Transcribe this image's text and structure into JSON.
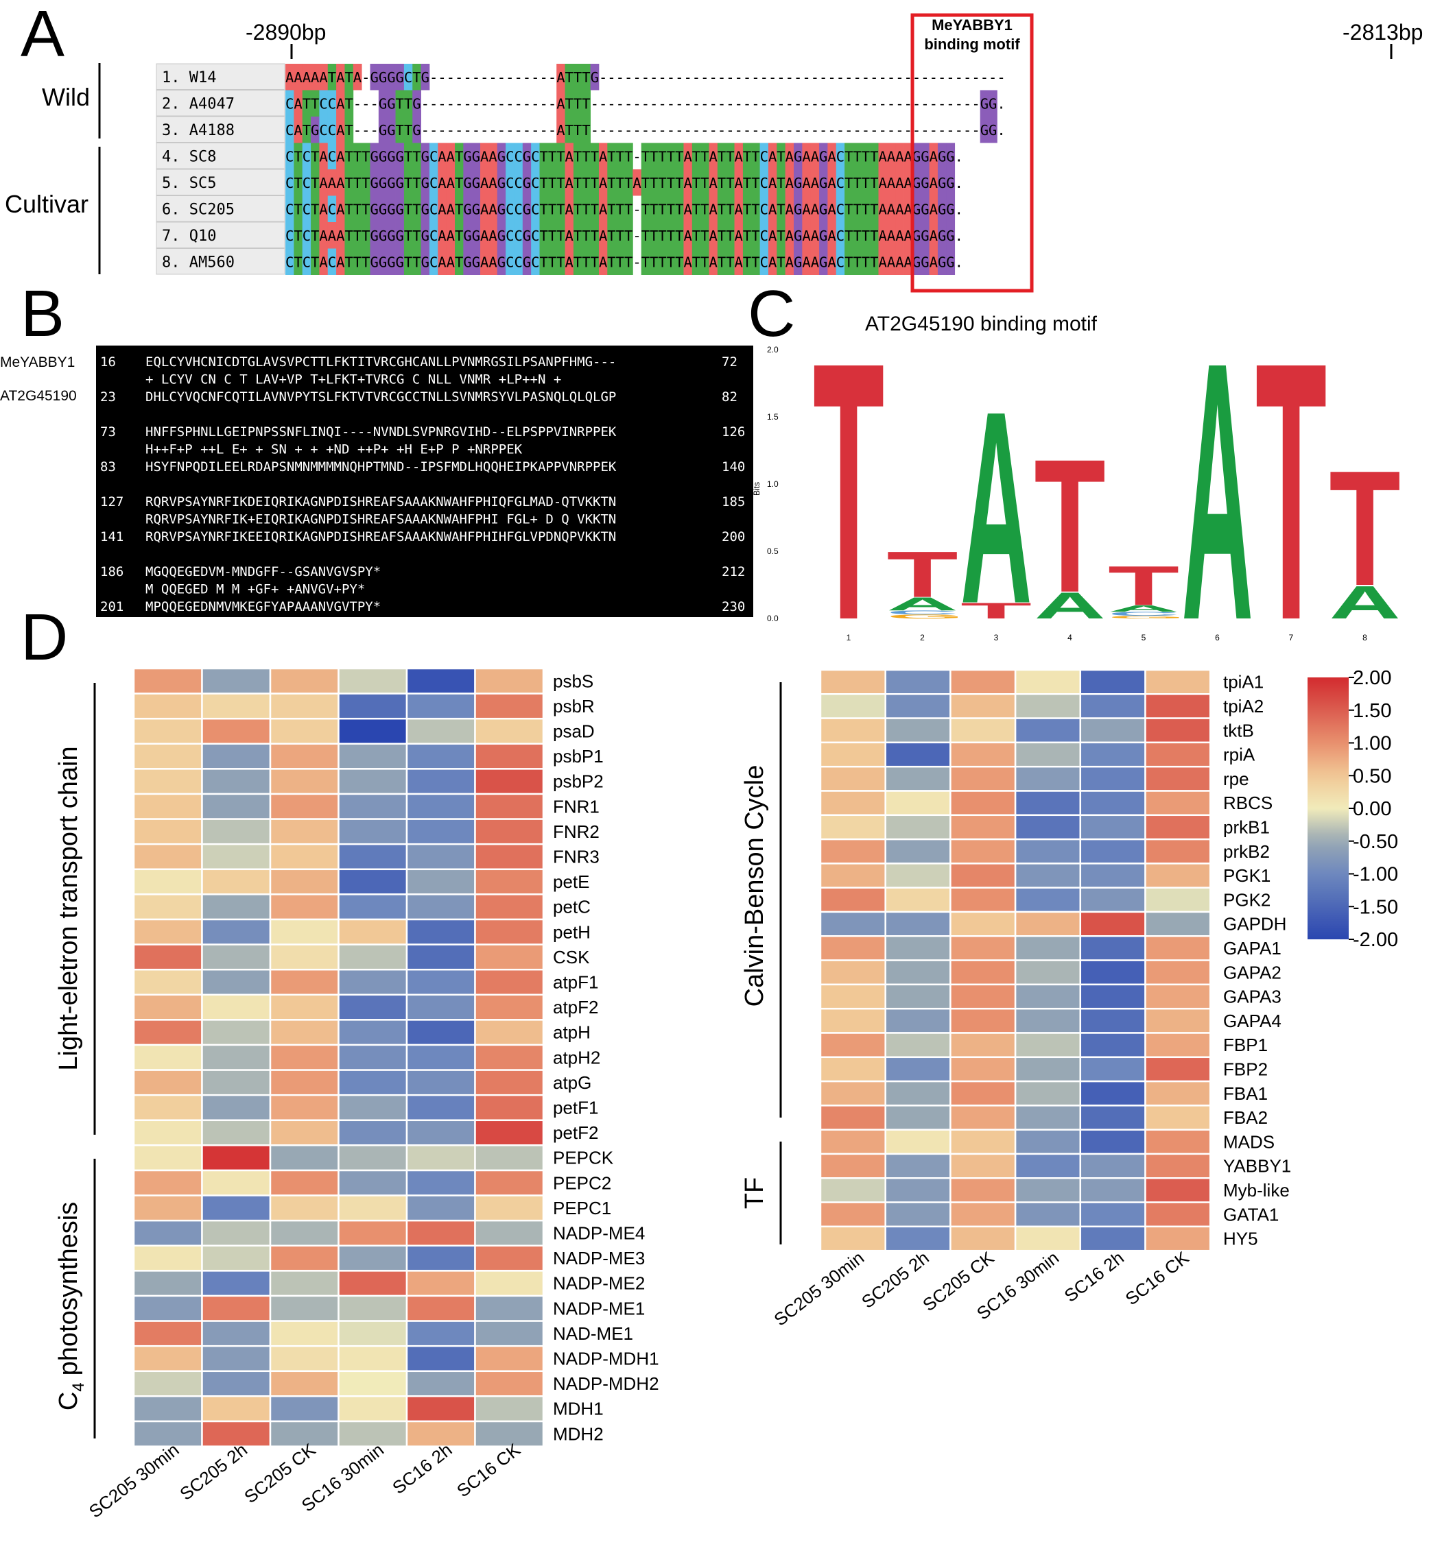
{
  "panels": {
    "a": "A",
    "b": "B",
    "c": "C",
    "d": "D"
  },
  "alignment": {
    "left_pos": "-2890bp",
    "right_pos": "-2813bp",
    "motif_label_line1": "MeYABBY1",
    "motif_label_line2": "binding motif",
    "group_wild": "Wild",
    "group_cultivar": "Cultivar",
    "rows": [
      {
        "label": "1. W14",
        "seq": "AAAAATATA-GGGGCTG---------------ATTTG------------------------------------------------"
      },
      {
        "label": "2. A4047",
        "seq": "CATTCCAT---GGTTG----------------ATTT----------------------------------------------GG."
      },
      {
        "label": "3. A4188",
        "seq": "CATGCCAT---GGTTG----------------ATTT----------------------------------------------GG."
      },
      {
        "label": "4. SC8",
        "seq": "CTCTACATTTGGGGTTGCAATGGAAGCCGCTTTATTTATTT-TTTTTATTATTATTCATAGAAGACTTTTAAAAGGAGG."
      },
      {
        "label": "5. SC5",
        "seq": "CTCTAAATTTGGGGTTGCAATGGAAGCCGCTTTATTTATTTATTTTTATTATTATTCATAGAAGACTTTTAAAAGGAGG."
      },
      {
        "label": "6. SC205",
        "seq": "CTCTACATTTGGGGTTGCAATGGAAGCCGCTTTATTTATTT-TTTTTATTATTATTCATAGAAGACTTTTAAAAGGAGG."
      },
      {
        "label": "7. Q10",
        "seq": "CTCTAAATTTGGGGTTGCAATGGAAGCCGCTTTATTTATTT-TTTTTATTATTATTCATAGAAGACTTTTAAAAGGAGG."
      },
      {
        "label": "8. AM560",
        "seq": "CTCTACATTTGGGGTTGCAATGGAAGCCGCTTTATTTATTT-TTTTTATTATTATTCATAGAAGACTTTTAAAAGGAGG."
      }
    ]
  },
  "protein_alignment": {
    "name1": "MeYABBY1",
    "name2": "AT2G45190",
    "blocks": [
      {
        "q_start": "16",
        "q_seq": "EQLCYVHCNICDTGLAVSVPCTTLFKTITVRCGHCANLLPVNMRGSILPSANPFHMG---",
        "q_end": "72",
        "match": "+ LCYV CN C T LAV+VP T+LFKT+TVRCG C NLL VNMR +LP++N   +",
        "s_start": "23",
        "s_seq": "DHLCYVQCNFCQTILAVNVPYTSLFKTVTVRCGCCTNLLSVNMRSYVLPASNQLQLQLGP",
        "s_end": "82"
      },
      {
        "q_start": "73",
        "q_seq": "HNFFSPHNLLGEIPNPSSNFLINQI----NVNDLSVPNRGVIHD--ELPSPPVINRPPEK",
        "q_end": "126",
        "match": "H++F+P ++L E+ +   SN  +  +      +ND  ++P+   +H    E+P   P +NRPPEK",
        "s_start": "83",
        "s_seq": "HSYFNPQDILEELRDAPSNMNMMMMNQHPTMND--IPSFMDLHQQHEIPKAPPVNRPPEK",
        "s_end": "140"
      },
      {
        "q_start": "127",
        "q_seq": "RQRVPSAYNRFIKDEIQRIKAGNPDISHREAFSAAAKNWAHFPHIQFGLMAD-QTVKKTN",
        "q_end": "185",
        "match": "RQRVPSAYNRFIK+EIQRIKAGNPDISHREAFSAAAKNWAHFPHI FGL+ D Q VKKTN",
        "s_start": "141",
        "s_seq": "RQRVPSAYNRFIKEEIQRIKAGNPDISHREAFSAAAKNWAHFPHIHFGLVPDNQPVKKTN",
        "s_end": "200"
      },
      {
        "q_start": "186",
        "q_seq": "MGQQEGEDVM-MNDGFF--GSANVGVSPY*",
        "q_end": "212",
        "match": "M QQEGED M M +GF+    +ANVGV+PY*",
        "s_start": "201",
        "s_seq": "MPQQEGEDNMVMKEGFYAPAAANVGVTPY*",
        "s_end": "230"
      }
    ]
  },
  "motif_logo": {
    "title": "AT2G45190 binding motif",
    "ylabel": "Bits",
    "y_ticks": [
      "2.0",
      "1.5",
      "1.0",
      "0.5",
      "0.0"
    ],
    "positions": [
      "1",
      "2",
      "3",
      "4",
      "5",
      "6",
      "7",
      "8"
    ]
  },
  "chart_data": [
    {
      "type": "logo",
      "title": "AT2G45190 binding motif",
      "ylabel": "Bits",
      "ylim": [
        0,
        2.0
      ],
      "positions": [
        1,
        2,
        3,
        4,
        5,
        6,
        7,
        8
      ],
      "stacks": [
        [
          {
            "base": "T",
            "bits": 1.97
          }
        ],
        [
          {
            "base": "G",
            "bits": 0.03
          },
          {
            "base": "C",
            "bits": 0.03
          },
          {
            "base": "A",
            "bits": 0.1
          },
          {
            "base": "T",
            "bits": 0.35
          }
        ],
        [
          {
            "base": "T",
            "bits": 0.12
          },
          {
            "base": "A",
            "bits": 1.47
          }
        ],
        [
          {
            "base": "A",
            "bits": 0.2
          },
          {
            "base": "T",
            "bits": 1.02
          }
        ],
        [
          {
            "base": "G",
            "bits": 0.02
          },
          {
            "base": "C",
            "bits": 0.03
          },
          {
            "base": "A",
            "bits": 0.05
          },
          {
            "base": "T",
            "bits": 0.3
          }
        ],
        [
          {
            "base": "A",
            "bits": 1.97
          }
        ],
        [
          {
            "base": "T",
            "bits": 1.97
          }
        ],
        [
          {
            "base": "A",
            "bits": 0.25
          },
          {
            "base": "T",
            "bits": 0.88
          }
        ]
      ]
    },
    {
      "type": "heatmap",
      "title": "",
      "columns": [
        "SC205 30min",
        "SC205 2h",
        "SC205 CK",
        "SC16 30min",
        "SC16 2h",
        "SC16 CK"
      ],
      "groups": [
        {
          "name": "Light-eletron transport chain",
          "rows": 19
        },
        {
          "name": "C4 photosynthesis",
          "rows": 12
        }
      ],
      "rows": [
        "psbS",
        "psbR",
        "psaD",
        "psbP1",
        "psbP2",
        "FNR1",
        "FNR2",
        "FNR3",
        "petE",
        "petC",
        "petH",
        "CSK",
        "atpF1",
        "atpF2",
        "atpH",
        "atpH2",
        "atpG",
        "petF1",
        "petF2",
        "PEPCK",
        "PEPC2",
        "PEPC1",
        "NADP-ME4",
        "NADP-ME3",
        "NADP-ME2",
        "NADP-ME1",
        "NAD-ME1",
        "NADP-MDH1",
        "NADP-MDH2",
        "MDH1",
        "MDH2"
      ],
      "values": [
        [
          0.9,
          -0.6,
          0.7,
          -0.2,
          -1.8,
          0.7
        ],
        [
          0.5,
          0.3,
          0.4,
          -1.4,
          -1.0,
          1.2
        ],
        [
          0.4,
          1.0,
          0.4,
          -2.0,
          -0.3,
          0.4
        ],
        [
          0.4,
          -0.7,
          0.8,
          -0.6,
          -1.0,
          1.3
        ],
        [
          0.4,
          -0.6,
          0.7,
          -0.6,
          -1.1,
          1.6
        ],
        [
          0.5,
          -0.6,
          0.9,
          -0.8,
          -1.0,
          1.3
        ],
        [
          0.5,
          -0.3,
          0.6,
          -0.8,
          -1.0,
          1.3
        ],
        [
          0.6,
          -0.2,
          0.5,
          -1.2,
          -0.8,
          1.3
        ],
        [
          0.1,
          0.4,
          0.7,
          -1.5,
          -0.6,
          1.1
        ],
        [
          0.3,
          -0.5,
          0.8,
          -1.0,
          -0.8,
          1.2
        ],
        [
          0.6,
          -0.9,
          0.1,
          0.5,
          -1.4,
          1.2
        ],
        [
          1.3,
          -0.4,
          0.2,
          -0.3,
          -1.4,
          0.9
        ],
        [
          0.3,
          -0.6,
          0.9,
          -0.8,
          -1.0,
          1.2
        ],
        [
          0.7,
          0.1,
          0.5,
          -1.3,
          -0.9,
          1.0
        ],
        [
          1.2,
          -0.3,
          0.6,
          -0.9,
          -1.5,
          0.6
        ],
        [
          0.1,
          -0.4,
          0.9,
          -0.9,
          -1.0,
          1.1
        ],
        [
          0.7,
          -0.4,
          0.9,
          -1.0,
          -0.9,
          1.2
        ],
        [
          0.4,
          -0.6,
          0.8,
          -0.6,
          -1.1,
          1.3
        ],
        [
          0.1,
          -0.3,
          0.6,
          -0.9,
          -0.8,
          1.7
        ],
        [
          0.1,
          1.9,
          -0.5,
          -0.4,
          -0.2,
          -0.3
        ],
        [
          0.8,
          0.1,
          1.0,
          -0.7,
          -1.0,
          1.1
        ],
        [
          0.7,
          -1.1,
          0.4,
          0.2,
          -0.8,
          0.4
        ],
        [
          -0.8,
          -0.3,
          -0.4,
          1.0,
          1.3,
          -0.4
        ],
        [
          0.1,
          -0.2,
          1.0,
          -0.6,
          -1.2,
          1.2
        ],
        [
          -0.5,
          -1.1,
          -0.3,
          1.4,
          0.8,
          0.1
        ],
        [
          -0.7,
          1.2,
          -0.4,
          -0.3,
          1.2,
          -0.6
        ],
        [
          1.2,
          -0.7,
          0.1,
          -0.1,
          -1.0,
          -0.6
        ],
        [
          0.6,
          -0.7,
          0.2,
          0.1,
          -1.4,
          0.8
        ],
        [
          -0.2,
          -0.8,
          0.7,
          0.0,
          -0.6,
          0.9
        ],
        [
          -0.6,
          0.5,
          -0.8,
          0.1,
          1.6,
          -0.3
        ],
        [
          -0.6,
          1.4,
          -0.5,
          -0.3,
          0.7,
          -0.5
        ]
      ]
    },
    {
      "type": "heatmap",
      "title": "",
      "columns": [
        "SC205 30min",
        "SC205 2h",
        "SC205 CK",
        "SC16 30min",
        "SC16 2h",
        "SC16 CK"
      ],
      "groups": [
        {
          "name": "Calvin-Benson Cycle",
          "rows": 19
        },
        {
          "name": "TF",
          "rows": 5
        }
      ],
      "rows": [
        "tpiA1",
        "tpiA2",
        "tktB",
        "rpiA",
        "rpe",
        "RBCS",
        "prkB1",
        "prkB2",
        "PGK1",
        "PGK2",
        "GAPDH",
        "GAPA1",
        "GAPA2",
        "GAPA3",
        "GAPA4",
        "FBP1",
        "FBP2",
        "FBA1",
        "FBA2",
        "MADS",
        "YABBY1",
        "Myb-like",
        "GATA1",
        "HY5"
      ],
      "values": [
        [
          0.6,
          -0.9,
          0.9,
          0.1,
          -1.5,
          0.6
        ],
        [
          -0.1,
          -0.9,
          0.6,
          -0.3,
          -1.1,
          1.5
        ],
        [
          0.5,
          -0.5,
          0.3,
          -1.1,
          -0.6,
          1.5
        ],
        [
          0.5,
          -1.5,
          0.8,
          -0.4,
          -1.0,
          1.2
        ],
        [
          0.6,
          -0.5,
          0.9,
          -0.7,
          -1.1,
          1.3
        ],
        [
          0.6,
          0.1,
          1.0,
          -1.3,
          -1.1,
          0.9
        ],
        [
          0.3,
          -0.3,
          0.9,
          -1.3,
          -0.9,
          1.3
        ],
        [
          0.9,
          -0.6,
          0.9,
          -0.9,
          -1.1,
          1.1
        ],
        [
          0.7,
          -0.2,
          1.1,
          -0.8,
          -0.9,
          0.7
        ],
        [
          1.1,
          0.3,
          1.0,
          -1.0,
          -0.8,
          -0.1
        ],
        [
          -0.8,
          -0.8,
          0.5,
          0.7,
          1.6,
          -0.5
        ],
        [
          0.9,
          -0.5,
          0.9,
          -0.5,
          -1.4,
          0.9
        ],
        [
          0.6,
          -0.5,
          1.0,
          -0.4,
          -1.6,
          0.9
        ],
        [
          0.5,
          -0.5,
          1.0,
          -0.6,
          -1.5,
          0.8
        ],
        [
          0.5,
          -0.7,
          1.0,
          -0.6,
          -1.4,
          0.7
        ],
        [
          0.9,
          -0.3,
          0.7,
          -0.3,
          -1.4,
          0.8
        ],
        [
          0.5,
          -0.9,
          0.8,
          -0.5,
          -1.0,
          1.4
        ],
        [
          0.7,
          -0.5,
          1.0,
          -0.4,
          -1.6,
          0.7
        ],
        [
          1.1,
          -0.5,
          0.8,
          -0.6,
          -1.4,
          0.5
        ],
        [
          0.8,
          0.1,
          0.5,
          -0.8,
          -1.5,
          1.0
        ],
        [
          0.9,
          -0.7,
          0.6,
          -1.0,
          -0.8,
          1.1
        ],
        [
          -0.2,
          -0.7,
          0.9,
          -0.6,
          -0.7,
          1.5
        ],
        [
          0.9,
          -0.7,
          0.8,
          -0.8,
          -1.0,
          1.2
        ],
        [
          0.5,
          -1.0,
          0.6,
          0.1,
          -1.2,
          0.8
        ]
      ]
    },
    {
      "type": "colorbar",
      "ticks": [
        "2.00",
        "1.50",
        "1.00",
        "0.50",
        "0.00",
        "-0.50",
        "-1.00",
        "-1.50",
        "-2.00"
      ],
      "range": [
        -2.0,
        2.0
      ],
      "colors": {
        "low": "#2a46b0",
        "mid": "#f1ebba",
        "high": "#d32b2f"
      }
    }
  ],
  "heatmap_labels": {
    "light": "Light-eletron transport chain",
    "c4_sub": "4",
    "c4_c": "C",
    "c4_rest": "photosynthesis",
    "calvin": "Calvin-Benson Cycle",
    "tf": "TF"
  },
  "colors": {
    "A": "#ef6363",
    "C": "#5bc1eb",
    "G": "#8b5db9",
    "T": "#4aae4a",
    "motif_box": "#e31e24",
    "logo_T": "#d8313b",
    "logo_A": "#1a9c40",
    "logo_G": "#f2a81d",
    "logo_C": "#5b9bd5"
  }
}
